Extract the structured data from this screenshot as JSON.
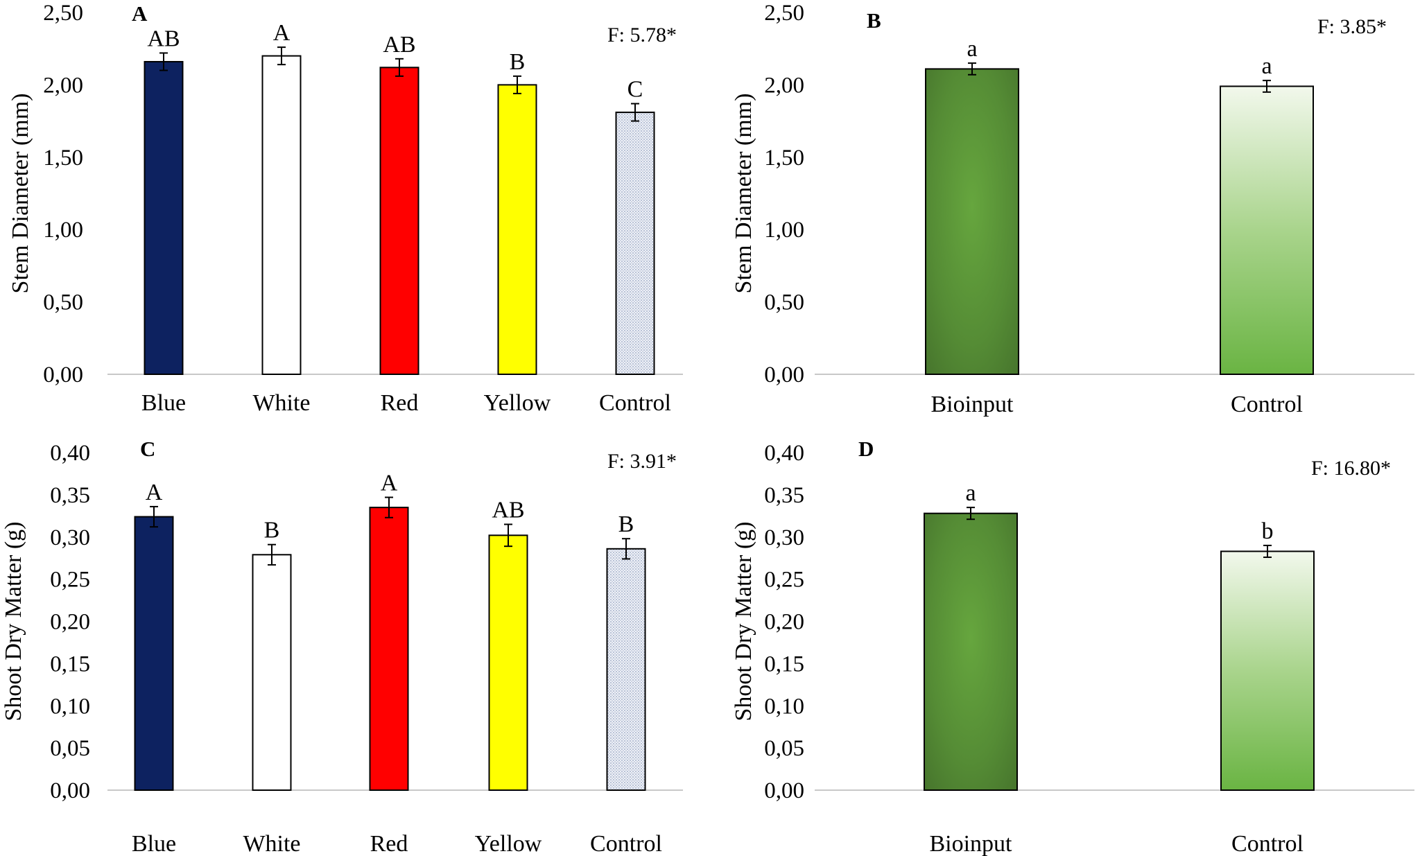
{
  "colors": {
    "navy": "#0d2260",
    "white": "#ffffff",
    "red": "#ff0000",
    "yellow": "#ffff00",
    "control_pattern": "#dde2ee",
    "green_dark": "#4a7a30",
    "green_mid": "#60a33c",
    "green_light": "#e9f3df",
    "green_bottom": "#68b040"
  },
  "chart_data": [
    {
      "panel": "A",
      "type": "bar",
      "ylabel": "Stem Diameter (mm)",
      "ylim": [
        0,
        2.5
      ],
      "yticks": [
        "0,00",
        "0,50",
        "1,00",
        "1,50",
        "2,00",
        "2,50"
      ],
      "f_text": "F: 5.78*",
      "categories": [
        "Blue",
        "White",
        "Red",
        "Yellow",
        "Control"
      ],
      "values": [
        2.16,
        2.2,
        2.12,
        2.0,
        1.81
      ],
      "errors": [
        0.06,
        0.06,
        0.06,
        0.06,
        0.06
      ],
      "letters": [
        "AB",
        "A",
        "AB",
        "B",
        "C"
      ],
      "fills": [
        "navy",
        "white",
        "red",
        "yellow",
        "pattern"
      ]
    },
    {
      "panel": "B",
      "type": "bar",
      "ylabel": "Stem Diameter (mm)",
      "ylim": [
        0,
        2.5
      ],
      "yticks": [
        "0,00",
        "0,50",
        "1,00",
        "1,50",
        "2,00",
        "2,50"
      ],
      "f_text": "F: 3.85*",
      "categories": [
        "Bioinput",
        "Control"
      ],
      "values": [
        2.11,
        1.99
      ],
      "errors": [
        0.04,
        0.04
      ],
      "letters": [
        "a",
        "a"
      ],
      "fills": [
        "gradDark",
        "gradLight"
      ]
    },
    {
      "panel": "C",
      "type": "bar",
      "ylabel": "Shoot Dry Matter (g)",
      "ylim": [
        0,
        0.4
      ],
      "yticks": [
        "0,00",
        "0,05",
        "0,10",
        "0,15",
        "0,20",
        "0,25",
        "0,30",
        "0,35",
        "0,40"
      ],
      "f_text": "F: 3.91*",
      "categories": [
        "Blue",
        "White",
        "Red",
        "Yellow",
        "Control"
      ],
      "values": [
        0.324,
        0.279,
        0.335,
        0.302,
        0.286
      ],
      "errors": [
        0.012,
        0.012,
        0.012,
        0.013,
        0.012
      ],
      "letters": [
        "A",
        "B",
        "A",
        "AB",
        "B"
      ],
      "fills": [
        "navy",
        "white",
        "red",
        "yellow",
        "pattern"
      ]
    },
    {
      "panel": "D",
      "type": "bar",
      "ylabel": "Shoot Dry Matter (g)",
      "ylim": [
        0,
        0.4
      ],
      "yticks": [
        "0,00",
        "0,05",
        "0,10",
        "0,15",
        "0,20",
        "0,25",
        "0,30",
        "0,35",
        "0,40"
      ],
      "f_text": "F: 16.80*",
      "categories": [
        "Bioinput",
        "Control"
      ],
      "values": [
        0.328,
        0.283
      ],
      "errors": [
        0.007,
        0.007
      ],
      "letters": [
        "a",
        "b"
      ],
      "fills": [
        "gradDark",
        "gradLight"
      ]
    }
  ]
}
